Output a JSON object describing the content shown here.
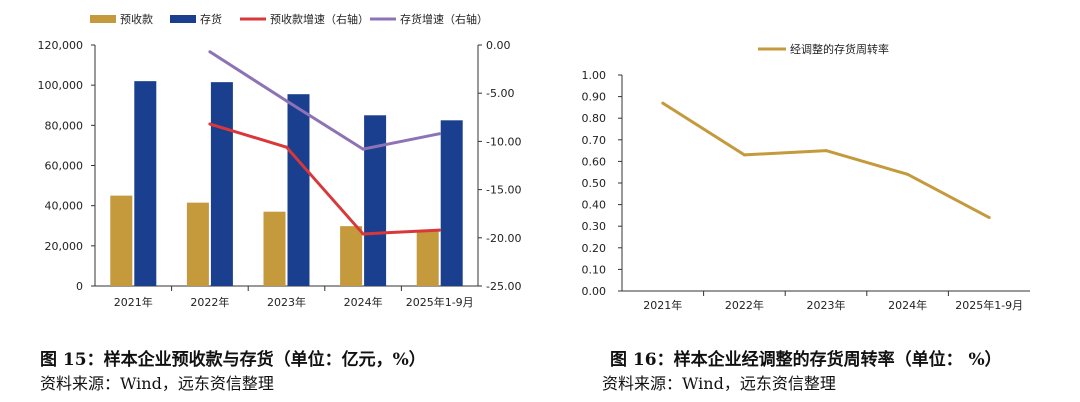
{
  "colors": {
    "advance": "#C49A3C",
    "inventory": "#1A3F8F",
    "advance_growth": "#D9383A",
    "inventory_growth": "#8D73B5",
    "turnover": "#C49A3C",
    "axis": "#333333"
  },
  "fig15": {
    "caption": "图 15：样本企业预收款与存货（单位：亿元，%）",
    "source": "资料来源：Wind，远东资信整理"
  },
  "fig16": {
    "caption": "图 16：样本企业经调整的存货周转率（单位： %）",
    "source": "资料来源：Wind，远东资信整理"
  },
  "chart_data": [
    {
      "id": "fig15",
      "type": "bar",
      "title": "",
      "categories": [
        "2021年",
        "2022年",
        "2023年",
        "2024年",
        "2025年1-9月"
      ],
      "series": [
        {
          "name": "预收款",
          "kind": "bar",
          "axis": "left",
          "values": [
            45000,
            41500,
            37000,
            29800,
            27500
          ]
        },
        {
          "name": "存货",
          "kind": "bar",
          "axis": "left",
          "values": [
            102000,
            101500,
            95500,
            85000,
            82500
          ]
        },
        {
          "name": "预收款增速（右轴）",
          "kind": "line",
          "axis": "right",
          "values": [
            null,
            -8.2,
            -10.6,
            -19.6,
            -19.2
          ]
        },
        {
          "name": "存货增速（右轴）",
          "kind": "line",
          "axis": "right",
          "values": [
            null,
            -0.7,
            -5.8,
            -10.8,
            -9.2
          ]
        }
      ],
      "left_axis": {
        "min": 0,
        "max": 120000,
        "ticks": [
          "0",
          "20,000",
          "40,000",
          "60,000",
          "80,000",
          "100,000",
          "120,000"
        ]
      },
      "right_axis": {
        "min": -25,
        "max": 0,
        "ticks": [
          "0.00",
          "-5.00",
          "-10.00",
          "-15.00",
          "-20.00",
          "-25.00"
        ]
      },
      "legend_position": "top"
    },
    {
      "id": "fig16",
      "type": "line",
      "title": "",
      "categories": [
        "2021年",
        "2022年",
        "2023年",
        "2024年",
        "2025年1-9月"
      ],
      "series": [
        {
          "name": "经调整的存货周转率",
          "values": [
            0.87,
            0.63,
            0.65,
            0.54,
            0.34
          ]
        }
      ],
      "y_axis": {
        "min": 0,
        "max": 1.0,
        "ticks": [
          "0.00",
          "0.10",
          "0.20",
          "0.30",
          "0.40",
          "0.50",
          "0.60",
          "0.70",
          "0.80",
          "0.90",
          "1.00"
        ]
      },
      "legend_position": "top"
    }
  ]
}
